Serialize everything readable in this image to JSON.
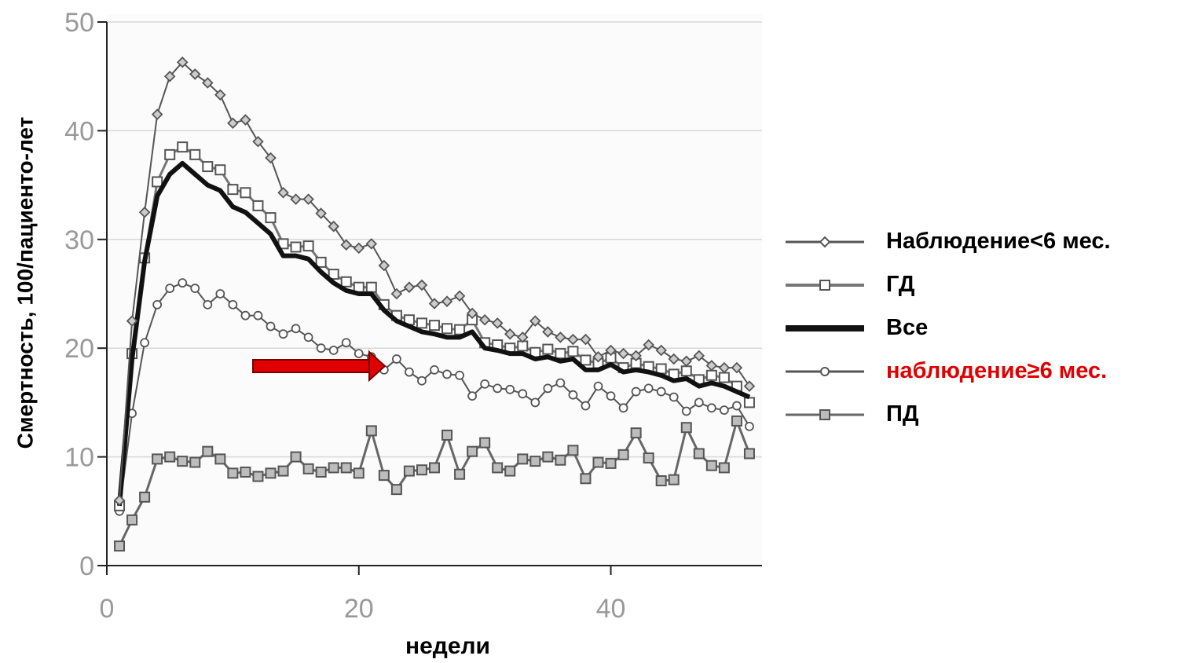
{
  "chart_data": {
    "type": "line",
    "xlabel": "недели",
    "ylabel": "Смертность, 100/пациенто-лет",
    "xlim": [
      0,
      52
    ],
    "ylim": [
      0,
      50
    ],
    "xticks": [
      0,
      20,
      40
    ],
    "yticks": [
      0,
      10,
      20,
      30,
      40,
      50
    ],
    "grid": true,
    "legend_position": "right",
    "x": [
      1,
      2,
      3,
      4,
      5,
      6,
      7,
      8,
      9,
      10,
      11,
      12,
      13,
      14,
      15,
      16,
      17,
      18,
      19,
      20,
      21,
      22,
      23,
      24,
      25,
      26,
      27,
      28,
      29,
      30,
      31,
      32,
      33,
      34,
      35,
      36,
      37,
      38,
      39,
      40,
      41,
      42,
      43,
      44,
      45,
      46,
      47,
      48,
      49,
      50,
      51
    ],
    "series": [
      {
        "name": "Наблюдение<6 мес.",
        "color": "#555555",
        "marker": "diamond",
        "values": [
          6,
          22.5,
          32.5,
          41.5,
          45,
          46.3,
          45.2,
          44.4,
          43.3,
          40.7,
          41,
          39,
          37.5,
          34.3,
          33.7,
          33.7,
          32.4,
          31.2,
          29.5,
          29.2,
          29.6,
          27.6,
          25,
          25.6,
          25.8,
          24.1,
          24.3,
          24.8,
          23.2,
          22.6,
          22.3,
          21.3,
          21,
          22.5,
          21.5,
          21,
          20.8,
          20.8,
          19.2,
          19.8,
          19.5,
          19.3,
          20.3,
          19.8,
          19,
          18.8,
          19.3,
          18.4,
          18.2,
          18.2,
          16.5
        ]
      },
      {
        "name": "ГД",
        "color": "#777777",
        "marker": "square",
        "values": [
          5.5,
          19.5,
          28.3,
          35.3,
          37.8,
          38.5,
          37.8,
          36.7,
          36.4,
          34.6,
          34.3,
          33.1,
          32,
          29.6,
          29.3,
          29.4,
          27.9,
          26.8,
          26.1,
          25.6,
          25.6,
          24,
          23,
          22.6,
          22.3,
          22.1,
          21.8,
          21.7,
          22.6,
          20.5,
          20.3,
          20,
          20.2,
          19.6,
          19.9,
          19.5,
          19.7,
          18.9,
          18.6,
          19.1,
          18.2,
          18.6,
          18.3,
          18.1,
          17.6,
          17.9,
          17.1,
          17.5,
          17.3,
          16.5,
          15
        ]
      },
      {
        "name": "Все",
        "color": "#111111",
        "marker": "none",
        "values": [
          5.5,
          19,
          28,
          34,
          36,
          37,
          36,
          35,
          34.5,
          33,
          32.5,
          31.5,
          30.5,
          28.5,
          28.5,
          28.2,
          27,
          26,
          25.3,
          25,
          25,
          23.5,
          22.5,
          22,
          21.5,
          21.3,
          21,
          21,
          21.5,
          20,
          19.8,
          19.5,
          19.5,
          19,
          19.2,
          18.8,
          19,
          18,
          18,
          18.5,
          17.8,
          18,
          17.8,
          17.5,
          17,
          17.2,
          16.5,
          16.8,
          16.5,
          16,
          15.5
        ]
      },
      {
        "name": "наблюдение≥6 мес.",
        "color": "#555555",
        "marker": "circle",
        "values": [
          5,
          14,
          20.5,
          24,
          25.5,
          26,
          25.5,
          24,
          25,
          24,
          23,
          23,
          22,
          21.3,
          21.8,
          21,
          20,
          19.8,
          20.5,
          19.5,
          19.2,
          18,
          19,
          17.8,
          17,
          18,
          17.6,
          17.5,
          15.6,
          16.7,
          16.3,
          16.2,
          15.8,
          15,
          16.3,
          16.8,
          15.7,
          14.7,
          16.5,
          15.6,
          14.5,
          16,
          16.3,
          16,
          15.5,
          14.2,
          15,
          14.5,
          14.3,
          14.7,
          12.8
        ]
      },
      {
        "name": "ПД",
        "color": "#666666",
        "marker": "square",
        "values": [
          1.8,
          4.2,
          6.3,
          9.8,
          10,
          9.6,
          9.5,
          10.5,
          9.8,
          8.5,
          8.6,
          8.2,
          8.5,
          8.7,
          10,
          8.9,
          8.6,
          9,
          9,
          8.5,
          12.4,
          8.3,
          7,
          8.7,
          8.8,
          9,
          12,
          8.4,
          10.5,
          11.3,
          9,
          8.7,
          9.8,
          9.6,
          10,
          9.7,
          10.6,
          8,
          9.5,
          9.4,
          10.2,
          12.2,
          9.9,
          7.8,
          7.9,
          12.7,
          10.3,
          9.2,
          9,
          13.3,
          10.3
        ]
      }
    ]
  }
}
